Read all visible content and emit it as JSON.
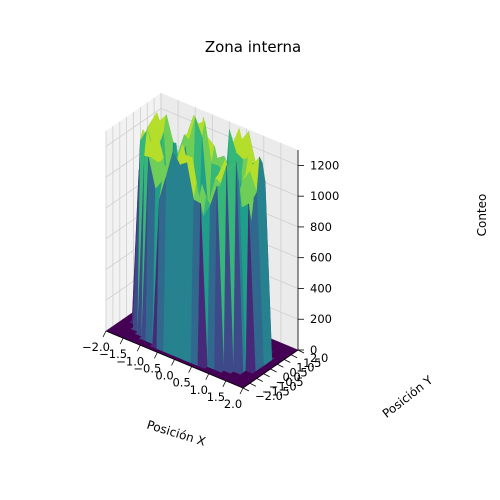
{
  "chart_data": {
    "type": "surface3d",
    "title": "Zona interna",
    "xlabel": "Posición X",
    "ylabel": "Posición Y",
    "zlabel": "Conteo",
    "xlim": [
      -2.0,
      2.0
    ],
    "ylim": [
      -2.0,
      2.0
    ],
    "zlim": [
      0,
      1300
    ],
    "x_ticks": [
      "−2.0",
      "−1.5",
      "−1.0",
      "−0.5",
      "0.0",
      "0.5",
      "1.0",
      "1.5",
      "2.0"
    ],
    "y_ticks": [
      "−2.0",
      "−1.5",
      "−1.0",
      "−0.5",
      "0.0",
      "0.5",
      "1.0",
      "1.5",
      "2.0"
    ],
    "z_ticks": [
      "0",
      "200",
      "400",
      "600",
      "800",
      "1000",
      "1200"
    ],
    "colormap": "viridis",
    "surface_description_values": {
      "grid_n": 21,
      "inner_radius": 1.05,
      "outer_radius": 1.75,
      "center_count": 620,
      "rim_count": 1150,
      "outside_count": 0
    }
  }
}
